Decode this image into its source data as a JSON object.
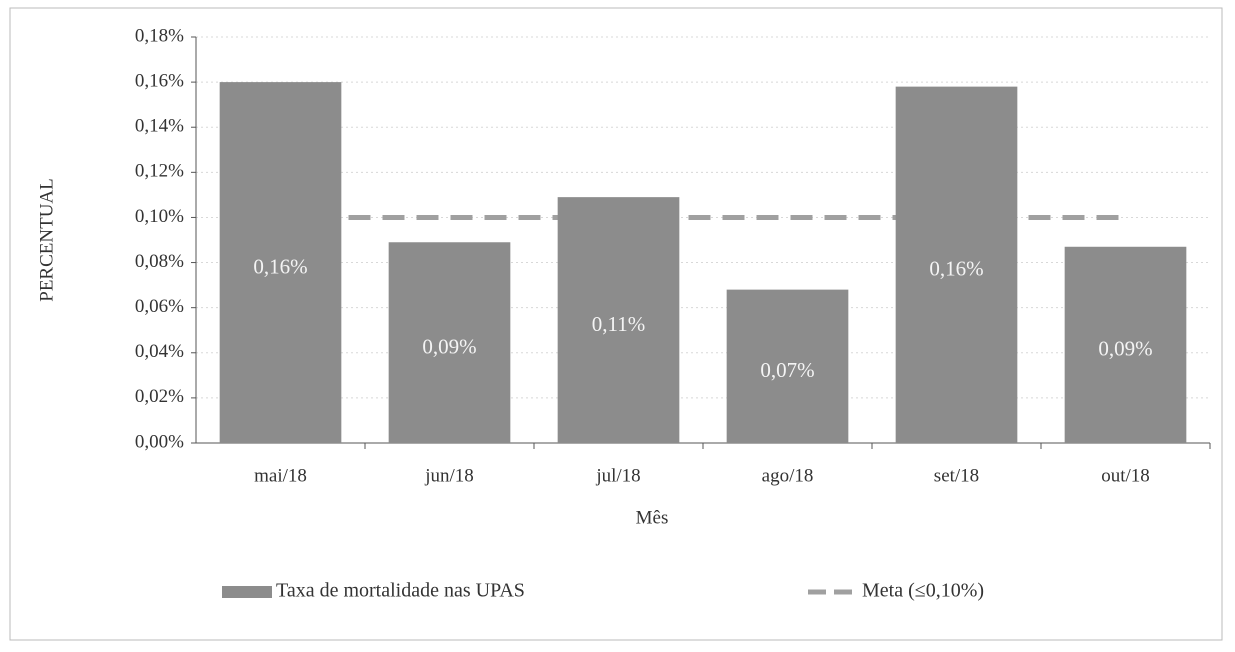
{
  "chart_data": {
    "type": "bar",
    "x_label": "Mês",
    "y_label": "PERCENTUAL",
    "categories": [
      "mai/18",
      "jun/18",
      "jul/18",
      "ago/18",
      "set/18",
      "out/18"
    ],
    "series": [
      {
        "name": "Taxa de mortalidade nas UPAS",
        "type": "bar",
        "color": "#8c8c8c",
        "values": [
          0.16,
          0.089,
          0.109,
          0.068,
          0.158,
          0.087
        ],
        "value_labels": [
          "0,16%",
          "0,09%",
          "0,11%",
          "0,07%",
          "0,16%",
          "0,09%"
        ]
      },
      {
        "name": "Meta (≤0,10%)",
        "type": "line",
        "color": "#a0a0a0",
        "dashed": true,
        "values": [
          0.1,
          0.1,
          0.1,
          0.1,
          0.1,
          0.1
        ]
      }
    ],
    "ylim": [
      0,
      0.18
    ],
    "yticks": [
      {
        "value": 0,
        "label": "0,00%"
      },
      {
        "value": 0.02,
        "label": "0,02%"
      },
      {
        "value": 0.04,
        "label": "0,04%"
      },
      {
        "value": 0.06,
        "label": "0,06%"
      },
      {
        "value": 0.08,
        "label": "0,08%"
      },
      {
        "value": 0.1,
        "label": "0,10%"
      },
      {
        "value": 0.12,
        "label": "0,12%"
      },
      {
        "value": 0.14,
        "label": "0,14%"
      },
      {
        "value": 0.16,
        "label": "0,16%"
      },
      {
        "value": 0.18,
        "label": "0,18%"
      }
    ],
    "grid": true,
    "legend": "bottom"
  }
}
